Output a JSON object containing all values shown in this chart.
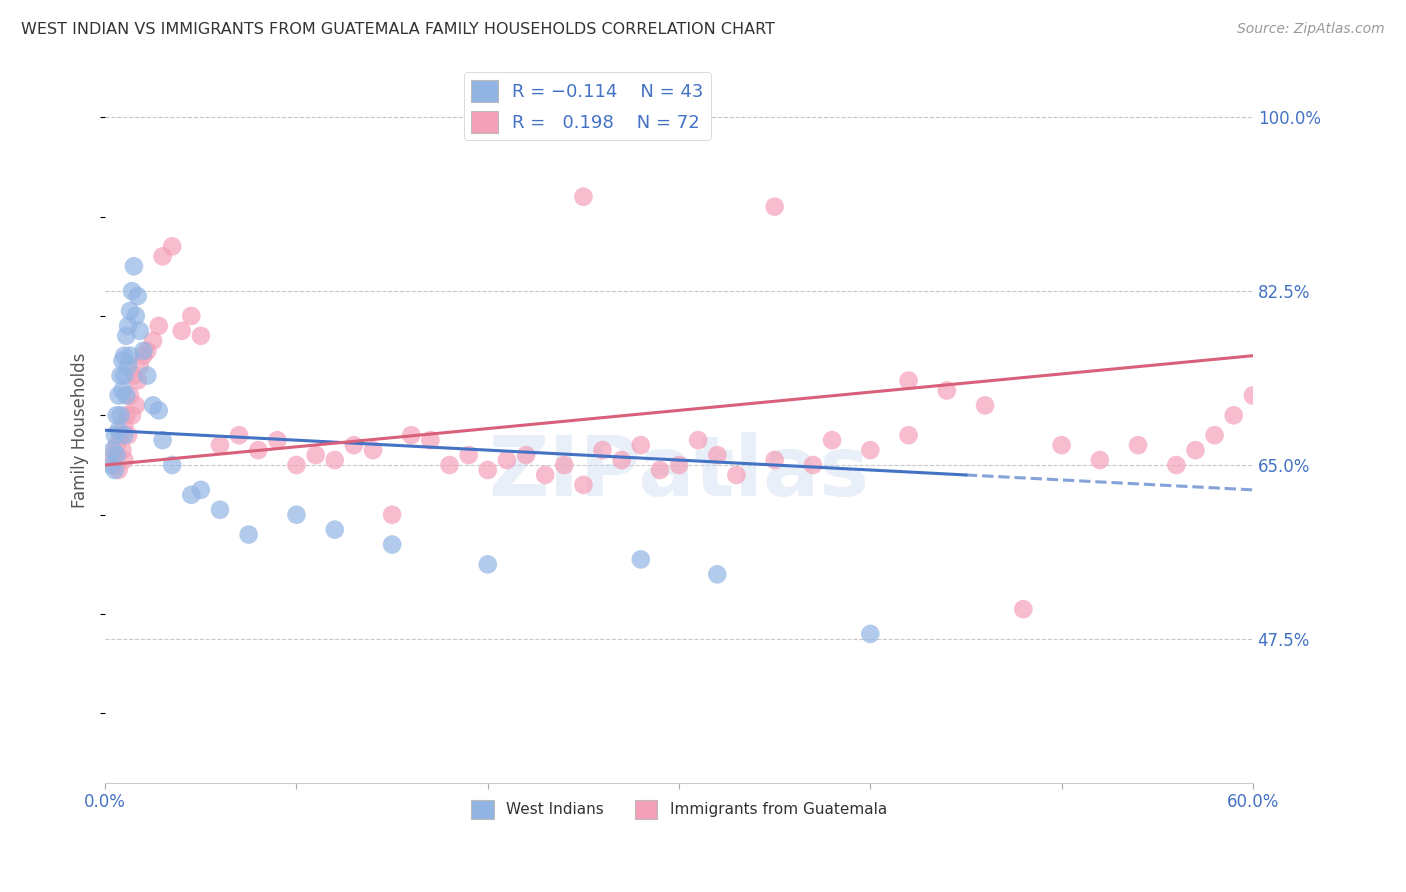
{
  "title": "WEST INDIAN VS IMMIGRANTS FROM GUATEMALA FAMILY HOUSEHOLDS CORRELATION CHART",
  "source": "Source: ZipAtlas.com",
  "ylabel": "Family Households",
  "y_ticks": [
    47.5,
    65.0,
    82.5,
    100.0
  ],
  "y_tick_labels": [
    "47.5%",
    "65.0%",
    "82.5%",
    "100.0%"
  ],
  "x_min": 0.0,
  "x_max": 60.0,
  "y_min": 33.0,
  "y_max": 104.0,
  "blue_color": "#92b4e3",
  "pink_color": "#f4a0b8",
  "blue_line_color": "#4472c4",
  "pink_line_color": "#d9607a",
  "label_color": "#4472c4",
  "title_color": "#333333",
  "background": "#ffffff",
  "grid_color": "#c8c8c8",
  "west_indian_x": [
    0.3,
    0.4,
    0.5,
    0.5,
    0.6,
    0.6,
    0.7,
    0.7,
    0.8,
    0.8,
    0.9,
    0.9,
    1.0,
    1.0,
    1.0,
    1.1,
    1.1,
    1.2,
    1.2,
    1.3,
    1.3,
    1.4,
    1.5,
    1.6,
    1.7,
    1.8,
    2.0,
    2.2,
    2.5,
    2.8,
    3.0,
    3.5,
    4.5,
    5.0,
    6.0,
    7.5,
    10.0,
    12.0,
    15.0,
    20.0,
    28.0,
    32.0,
    40.0
  ],
  "west_indian_y": [
    65.0,
    66.5,
    68.0,
    64.5,
    70.0,
    66.0,
    72.0,
    68.5,
    74.0,
    70.0,
    75.5,
    72.5,
    76.0,
    74.0,
    68.0,
    78.0,
    72.0,
    79.0,
    75.0,
    80.5,
    76.0,
    82.5,
    85.0,
    80.0,
    82.0,
    78.5,
    76.5,
    74.0,
    71.0,
    70.5,
    67.5,
    65.0,
    62.0,
    62.5,
    60.5,
    58.0,
    60.0,
    58.5,
    57.0,
    55.0,
    55.5,
    54.0,
    48.0
  ],
  "guatemala_x": [
    0.4,
    0.5,
    0.6,
    0.7,
    0.8,
    0.9,
    1.0,
    1.0,
    1.1,
    1.2,
    1.3,
    1.4,
    1.5,
    1.6,
    1.7,
    1.8,
    2.0,
    2.2,
    2.5,
    2.8,
    3.0,
    3.5,
    4.0,
    4.5,
    5.0,
    6.0,
    7.0,
    8.0,
    9.0,
    10.0,
    11.0,
    12.0,
    13.0,
    14.0,
    15.0,
    16.0,
    17.0,
    18.0,
    19.0,
    20.0,
    21.0,
    22.0,
    23.0,
    24.0,
    25.0,
    26.0,
    27.0,
    28.0,
    29.0,
    30.0,
    31.0,
    32.0,
    33.0,
    35.0,
    37.0,
    38.0,
    40.0,
    42.0,
    44.0,
    46.0,
    48.0,
    50.0,
    52.0,
    54.0,
    56.0,
    57.0,
    58.0,
    59.0,
    60.0,
    42.0,
    25.0,
    35.0
  ],
  "guatemala_y": [
    66.0,
    65.0,
    67.0,
    64.5,
    68.0,
    66.5,
    69.0,
    65.5,
    70.0,
    68.0,
    72.0,
    70.0,
    74.0,
    71.0,
    73.5,
    75.0,
    76.0,
    76.5,
    77.5,
    79.0,
    86.0,
    87.0,
    78.5,
    80.0,
    78.0,
    67.0,
    68.0,
    66.5,
    67.5,
    65.0,
    66.0,
    65.5,
    67.0,
    66.5,
    60.0,
    68.0,
    67.5,
    65.0,
    66.0,
    64.5,
    65.5,
    66.0,
    64.0,
    65.0,
    63.0,
    66.5,
    65.5,
    67.0,
    64.5,
    65.0,
    67.5,
    66.0,
    64.0,
    65.5,
    65.0,
    67.5,
    66.5,
    68.0,
    72.5,
    71.0,
    50.5,
    67.0,
    65.5,
    67.0,
    65.0,
    66.5,
    68.0,
    70.0,
    72.0,
    73.5,
    92.0,
    91.0
  ]
}
